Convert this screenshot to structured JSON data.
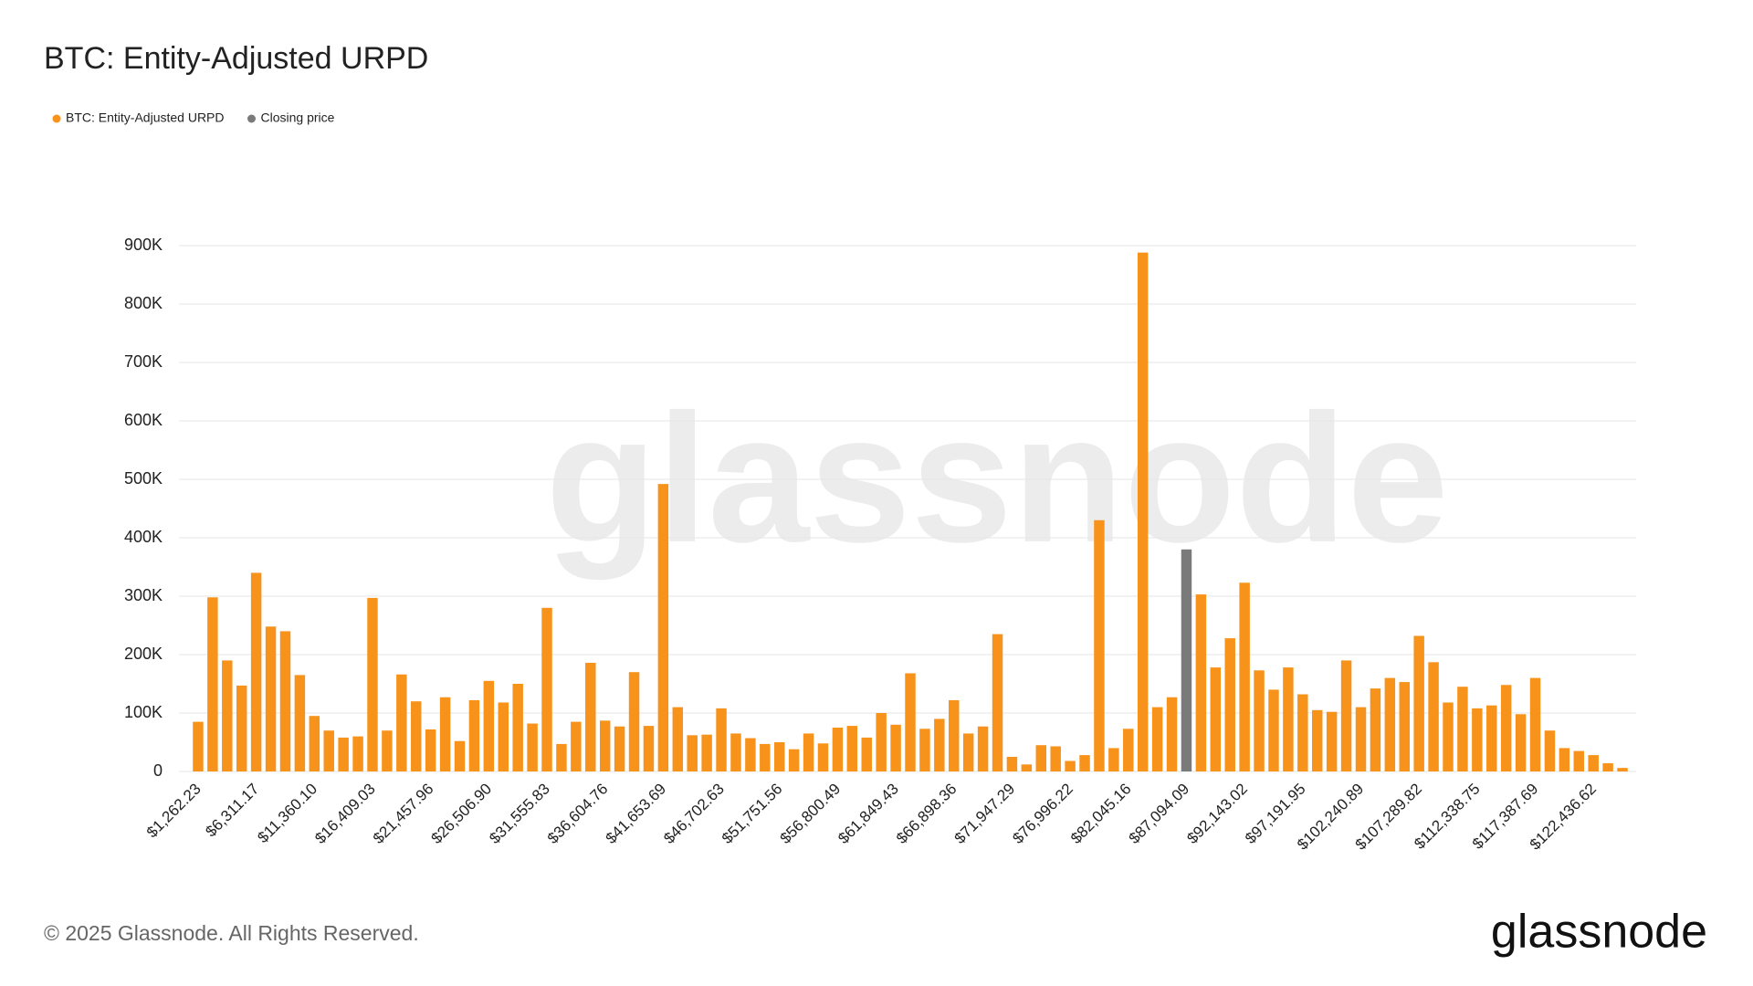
{
  "chart_data": {
    "type": "bar",
    "title": "BTC: Entity-Adjusted URPD",
    "legend": "top-left",
    "grid": true,
    "watermark": "glassnode",
    "footer": "© 2025 Glassnode. All Rights Reserved.",
    "logo": "glassnode",
    "ylim": [
      0,
      900000
    ],
    "yticks": [
      0,
      {
        "value": 100000,
        "label": "100K"
      },
      {
        "value": 200000,
        "label": "200K"
      },
      {
        "value": 300000,
        "label": "300K"
      },
      {
        "value": 400000,
        "label": "400K"
      },
      {
        "value": 500000,
        "label": "500K"
      },
      {
        "value": 600000,
        "label": "600K"
      },
      {
        "value": 700000,
        "label": "700K"
      },
      {
        "value": 800000,
        "label": "800K"
      },
      {
        "value": 900000,
        "label": "900K"
      }
    ],
    "categories": [
      "$1,262.23",
      null,
      null,
      null,
      "$6,311.17",
      null,
      null,
      null,
      "$11,360.10",
      null,
      null,
      null,
      "$16,409.03",
      null,
      null,
      null,
      "$21,457.96",
      null,
      null,
      null,
      "$26,506.90",
      null,
      null,
      null,
      "$31,555.83",
      null,
      null,
      null,
      "$36,604.76",
      null,
      null,
      null,
      "$41,653.69",
      null,
      null,
      null,
      "$46,702.63",
      null,
      null,
      null,
      "$51,751.56",
      null,
      null,
      null,
      "$56,800.49",
      null,
      null,
      null,
      "$61,849.43",
      null,
      null,
      null,
      "$66,898.36",
      null,
      null,
      null,
      "$71,947.29",
      null,
      null,
      null,
      "$76,996.22",
      null,
      null,
      null,
      "$82,045.16",
      null,
      null,
      null,
      "$87,094.09",
      null,
      null,
      null,
      "$92,143.02",
      null,
      null,
      null,
      "$97,191.95",
      null,
      null,
      null,
      "$102,240.89",
      null,
      null,
      null,
      "$107,289.82",
      null,
      null,
      null,
      "$112,338.75",
      null,
      null,
      null,
      "$117,387.69",
      null,
      null,
      null,
      "$122,436.62",
      null,
      null
    ],
    "series": [
      {
        "name": "BTC: Entity-Adjusted URPD",
        "color": "#f7931a",
        "values": [
          85000,
          298000,
          190000,
          147000,
          340000,
          248000,
          240000,
          165000,
          95000,
          70000,
          58000,
          60000,
          297000,
          70000,
          166000,
          120000,
          72000,
          127000,
          52000,
          122000,
          155000,
          118000,
          150000,
          82000,
          280000,
          47000,
          85000,
          186000,
          87000,
          77000,
          170000,
          78000,
          492000,
          110000,
          62000,
          63000,
          108000,
          65000,
          57000,
          47000,
          50000,
          38000,
          65000,
          48000,
          75000,
          78000,
          58000,
          100000,
          80000,
          168000,
          73000,
          90000,
          122000,
          65000,
          77000,
          235000,
          25000,
          12000,
          45000,
          43000,
          18000,
          28000,
          430000,
          40000,
          73000,
          888000,
          110000,
          127000,
          null,
          303000,
          178000,
          228000,
          323000,
          173000,
          140000,
          178000,
          132000,
          105000,
          102000,
          190000,
          110000,
          142000,
          160000,
          153000,
          232000,
          187000,
          118000,
          145000,
          108000,
          113000,
          148000,
          98000,
          160000,
          70000,
          40000,
          35000,
          28000,
          14000,
          6000
        ]
      },
      {
        "name": "Closing price",
        "color": "#7a7a7a",
        "values": [
          null,
          null,
          null,
          null,
          null,
          null,
          null,
          null,
          null,
          null,
          null,
          null,
          null,
          null,
          null,
          null,
          null,
          null,
          null,
          null,
          null,
          null,
          null,
          null,
          null,
          null,
          null,
          null,
          null,
          null,
          null,
          null,
          null,
          null,
          null,
          null,
          null,
          null,
          null,
          null,
          null,
          null,
          null,
          null,
          null,
          null,
          null,
          null,
          null,
          null,
          null,
          null,
          null,
          null,
          null,
          null,
          null,
          null,
          null,
          null,
          null,
          null,
          null,
          null,
          null,
          null,
          null,
          null,
          380000,
          null,
          null,
          null,
          null,
          null,
          null,
          null,
          null,
          null,
          null,
          null,
          null,
          null,
          null,
          null,
          null,
          null,
          null,
          null,
          null,
          null,
          null,
          null,
          null,
          null,
          null,
          null,
          null,
          null,
          null
        ]
      }
    ]
  }
}
